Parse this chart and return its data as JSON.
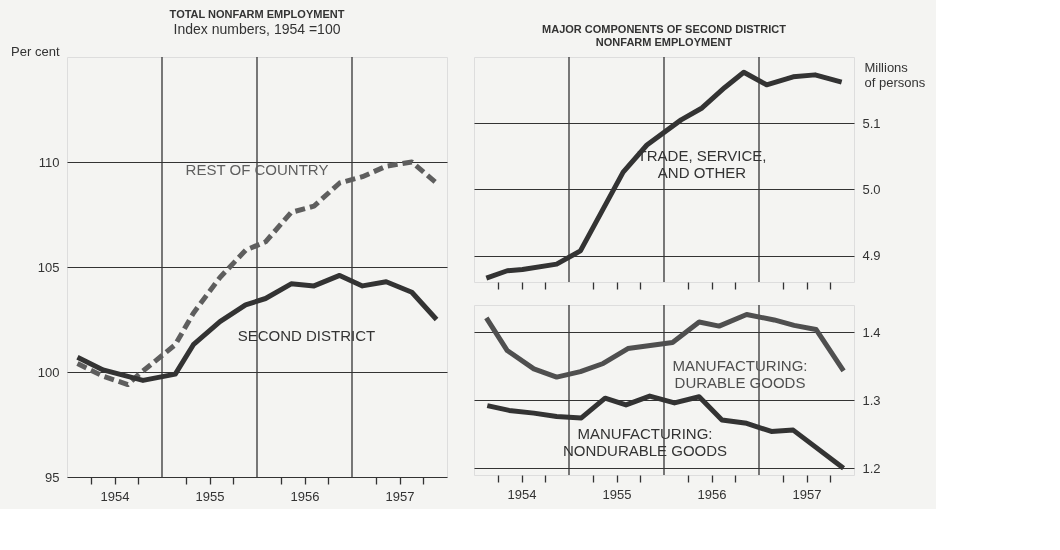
{
  "chart_data": [
    {
      "type": "line",
      "title": "TOTAL NONFARM EMPLOYMENT",
      "subtitle": "Index numbers, 1954 =100",
      "ylabel": "Per cent",
      "xlim": [
        1954,
        1958
      ],
      "xticks": [
        {
          "value": 1954.25,
          "label": null
        },
        {
          "value": 1954.5,
          "label": "1954"
        },
        {
          "value": 1954.75,
          "label": null
        },
        {
          "value": 1955.25,
          "label": null
        },
        {
          "value": 1955.5,
          "label": "1955"
        },
        {
          "value": 1955.75,
          "label": null
        },
        {
          "value": 1956.25,
          "label": null
        },
        {
          "value": 1956.5,
          "label": "1956"
        },
        {
          "value": 1956.75,
          "label": null
        },
        {
          "value": 1957.25,
          "label": null
        },
        {
          "value": 1957.5,
          "label": "1957"
        },
        {
          "value": 1957.75,
          "label": null
        }
      ],
      "ylim": [
        95,
        115
      ],
      "yticks": [
        95,
        100,
        105,
        110
      ],
      "grid": "y",
      "legend": false,
      "ref_lines": [
        {
          "axis": "x",
          "value": 1955,
          "label": null
        },
        {
          "axis": "x",
          "value": 1956,
          "label": null
        },
        {
          "axis": "x",
          "value": 1957,
          "label": null
        }
      ],
      "series": [
        {
          "name": "REST OF COUNTRY",
          "color": "#5e5e5e",
          "line_style": "dashed",
          "x": [
            1954.11,
            1954.38,
            1954.64,
            1954.76,
            1955.14,
            1955.33,
            1955.61,
            1955.88,
            1956.09,
            1956.36,
            1956.6,
            1956.87,
            1957.11,
            1957.36,
            1957.63,
            1957.89
          ],
          "values": [
            100.4,
            99.8,
            99.4,
            99.9,
            101.3,
            102.8,
            104.5,
            105.8,
            106.2,
            107.6,
            107.9,
            109.0,
            109.3,
            109.8,
            110.0,
            109.0
          ]
        },
        {
          "name": "SECOND DISTRICT",
          "color": "#333333",
          "line_style": "solid",
          "x": [
            1954.11,
            1954.38,
            1954.8,
            1955.14,
            1955.33,
            1955.61,
            1955.88,
            1956.09,
            1956.36,
            1956.6,
            1956.87,
            1957.11,
            1957.36,
            1957.63,
            1957.89
          ],
          "values": [
            100.7,
            100.1,
            99.6,
            99.9,
            101.3,
            102.4,
            103.2,
            103.5,
            104.2,
            104.1,
            104.6,
            104.1,
            104.3,
            103.8,
            102.5
          ]
        }
      ]
    },
    {
      "type": "line",
      "title": "MAJOR COMPONENTS OF SECOND DISTRICT\nNONFARM EMPLOYMENT",
      "ylabel": "Millions\nof persons",
      "xlim": [
        1954,
        1958
      ],
      "xticks": [
        {
          "value": 1954.25,
          "label": null
        },
        {
          "value": 1954.5,
          "label": null
        },
        {
          "value": 1954.75,
          "label": null
        },
        {
          "value": 1955.25,
          "label": null
        },
        {
          "value": 1955.5,
          "label": null
        },
        {
          "value": 1955.75,
          "label": null
        },
        {
          "value": 1956.25,
          "label": null
        },
        {
          "value": 1956.5,
          "label": null
        },
        {
          "value": 1956.75,
          "label": null
        },
        {
          "value": 1957.25,
          "label": null
        },
        {
          "value": 1957.5,
          "label": null
        },
        {
          "value": 1957.75,
          "label": null
        }
      ],
      "ylim": [
        4.86,
        5.2
      ],
      "yticks": [
        4.9,
        {
          "value": 5,
          "label": "5.0"
        },
        5.1
      ],
      "grid": "y",
      "legend": false,
      "tick_labels": "y",
      "ref_lines": [
        {
          "axis": "x",
          "value": 1955,
          "label": null
        },
        {
          "axis": "x",
          "value": 1956,
          "label": null
        },
        {
          "axis": "x",
          "value": 1957,
          "label": null
        }
      ],
      "series": [
        {
          "name": "TRADE, SERVICE,\nAND OTHER",
          "color": "#333333",
          "line_style": "solid",
          "x": [
            1954.13,
            1954.35,
            1954.51,
            1954.87,
            1955.12,
            1955.57,
            1955.82,
            1956.18,
            1956.4,
            1956.64,
            1956.84,
            1957.08,
            1957.36,
            1957.59,
            1957.87
          ],
          "values": [
            4.866,
            4.877,
            4.879,
            4.887,
            4.907,
            5.026,
            5.067,
            5.105,
            5.123,
            5.154,
            5.177,
            5.158,
            5.17,
            5.173,
            5.162
          ]
        }
      ]
    },
    {
      "type": "line",
      "xlim": [
        1954,
        1958
      ],
      "xticks": [
        {
          "value": 1954.25,
          "label": null
        },
        {
          "value": 1954.5,
          "label": "1954"
        },
        {
          "value": 1954.75,
          "label": null
        },
        {
          "value": 1955.25,
          "label": null
        },
        {
          "value": 1955.5,
          "label": "1955"
        },
        {
          "value": 1955.75,
          "label": null
        },
        {
          "value": 1956.25,
          "label": null
        },
        {
          "value": 1956.5,
          "label": "1956"
        },
        {
          "value": 1956.75,
          "label": null
        },
        {
          "value": 1957.25,
          "label": null
        },
        {
          "value": 1957.5,
          "label": "1957"
        },
        {
          "value": 1957.75,
          "label": null
        }
      ],
      "ylim": [
        1.19,
        1.44
      ],
      "yticks": [
        1.2,
        1.3,
        1.4
      ],
      "grid": "y",
      "legend": false,
      "ref_lines": [
        {
          "axis": "x",
          "value": 1955,
          "label": null
        },
        {
          "axis": "x",
          "value": 1956,
          "label": null
        },
        {
          "axis": "x",
          "value": 1957,
          "label": null
        }
      ],
      "series": [
        {
          "name": "MANUFACTURING:\nDURABLE GOODS",
          "color": "#4f4f4f",
          "line_style": "solid",
          "x": [
            1954.13,
            1954.35,
            1954.63,
            1954.87,
            1955.12,
            1955.36,
            1955.62,
            1956.09,
            1956.37,
            1956.58,
            1956.87,
            1957.16,
            1957.37,
            1957.6,
            1957.89
          ],
          "values": [
            1.421,
            1.373,
            1.346,
            1.334,
            1.342,
            1.354,
            1.376,
            1.385,
            1.415,
            1.409,
            1.426,
            1.418,
            1.41,
            1.404,
            1.343
          ]
        },
        {
          "name": "MANUFACTURING:\nNONDURABLE GOODS",
          "color": "#333333",
          "line_style": "solid",
          "x": [
            1954.14,
            1954.37,
            1954.63,
            1954.87,
            1955.13,
            1955.38,
            1955.6,
            1955.85,
            1956.11,
            1956.37,
            1956.61,
            1956.87,
            1957.13,
            1957.36,
            1957.89
          ],
          "values": [
            1.292,
            1.285,
            1.281,
            1.276,
            1.274,
            1.303,
            1.293,
            1.306,
            1.296,
            1.305,
            1.271,
            1.266,
            1.254,
            1.256,
            1.2
          ]
        }
      ]
    }
  ]
}
